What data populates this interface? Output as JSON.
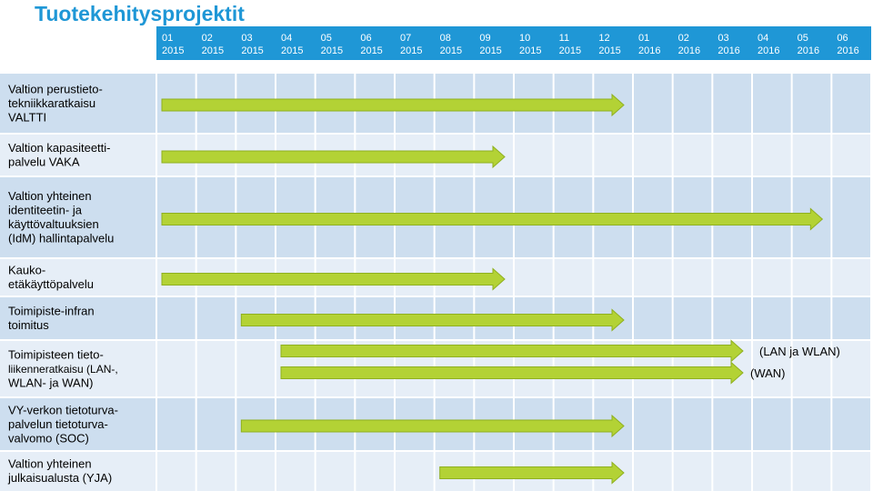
{
  "title": "Tuotekehitysprojektit",
  "colors": {
    "header_bg": "#1f97d6",
    "row_bg_dark": "#cddeef",
    "row_bg_light": "#e6eef7",
    "grid_line": "#ffffff",
    "arrow_fill": "#b3d235",
    "arrow_stroke": "#8fb020",
    "text": "#000000",
    "header_text": "#ffffff"
  },
  "chart_data": {
    "type": "table",
    "months": [
      {
        "month": "01",
        "year": "2015"
      },
      {
        "month": "02",
        "year": "2015"
      },
      {
        "month": "03",
        "year": "2015"
      },
      {
        "month": "04",
        "year": "2015"
      },
      {
        "month": "05",
        "year": "2015"
      },
      {
        "month": "06",
        "year": "2015"
      },
      {
        "month": "07",
        "year": "2015"
      },
      {
        "month": "08",
        "year": "2015"
      },
      {
        "month": "09",
        "year": "2015"
      },
      {
        "month": "10",
        "year": "2015"
      },
      {
        "month": "11",
        "year": "2015"
      },
      {
        "month": "12",
        "year": "2015"
      },
      {
        "month": "01",
        "year": "2016"
      },
      {
        "month": "02",
        "year": "2016"
      },
      {
        "month": "03",
        "year": "2016"
      },
      {
        "month": "04",
        "year": "2016"
      },
      {
        "month": "05",
        "year": "2016"
      },
      {
        "month": "06",
        "year": "2016"
      }
    ],
    "projects": [
      {
        "lines": [
          "Valtion perustieto-",
          "tekniikkaratkaisu",
          "VALTTI"
        ],
        "bars": [
          {
            "start": "2015-01",
            "end": "2015-12"
          }
        ]
      },
      {
        "lines": [
          "Valtion kapasiteetti-",
          "palvelu VAKA"
        ],
        "bars": [
          {
            "start": "2015-01",
            "end": "2015-09"
          }
        ]
      },
      {
        "lines": [
          "Valtion yhteinen",
          "identiteetin- ja",
          "käyttövaltuuksien",
          "(IdM) hallintapalvelu"
        ],
        "bars": [
          {
            "start": "2015-01",
            "end": "2016-05"
          }
        ]
      },
      {
        "lines": [
          "Kauko-",
          "etäkäyttöpalvelu"
        ],
        "bars": [
          {
            "start": "2015-01",
            "end": "2015-09"
          }
        ]
      },
      {
        "lines": [
          "Toimipiste-infran",
          "toimitus"
        ],
        "bars": [
          {
            "start": "2015-03",
            "end": "2015-12"
          }
        ]
      },
      {
        "lines": [
          "Toimipisteen tieto-",
          "liikenneratkaisu (LAN-,",
          "WLAN- ja WAN)"
        ],
        "bars": [
          {
            "start": "2015-04",
            "end": "2016-03",
            "label": "(LAN ja WLAN)"
          },
          {
            "start": "2015-04",
            "end": "2016-03",
            "label": "(WAN)"
          }
        ]
      },
      {
        "lines": [
          "VY-verkon tietoturva-",
          "palvelun tietoturva-",
          "valvomo (SOC)"
        ],
        "bars": [
          {
            "start": "2015-03",
            "end": "2015-12"
          }
        ]
      },
      {
        "lines": [
          "Valtion yhteinen",
          "julkaisualusta (YJA)"
        ],
        "bars": [
          {
            "start": "2015-08",
            "end": "2015-12"
          }
        ]
      }
    ]
  }
}
